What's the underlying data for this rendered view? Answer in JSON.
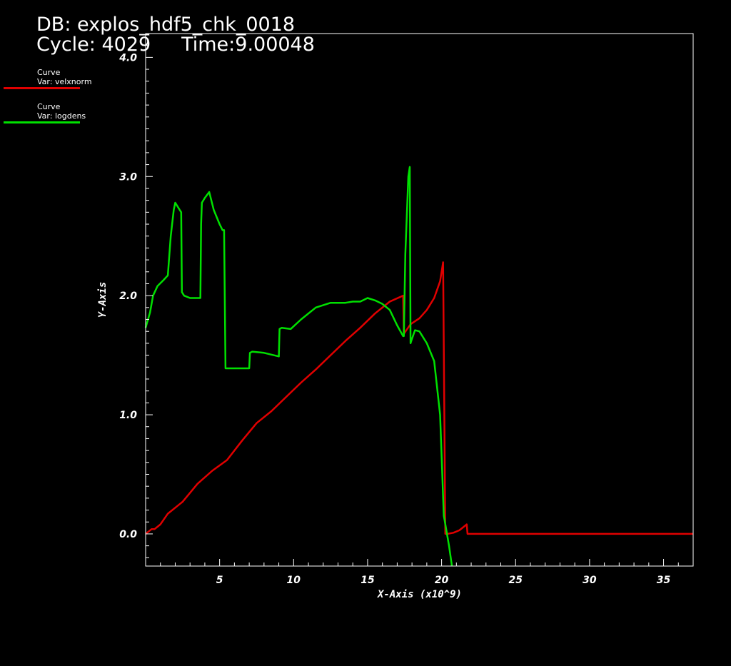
{
  "header": {
    "db_line": "DB: explos_hdf5_chk_0018",
    "cycle_line": "Cycle: 4029     Time:9.00048"
  },
  "legend": [
    {
      "kind": "Curve",
      "var": "Var: velxnorm",
      "color": "#e00000"
    },
    {
      "kind": "Curve",
      "var": "Var: logdens",
      "color": "#00e000"
    }
  ],
  "chart_data": {
    "type": "line",
    "xlabel": "X-Axis (x10^9)",
    "ylabel": "Y-Axis",
    "xlim": [
      0,
      37
    ],
    "ylim": [
      -0.27,
      4.2
    ],
    "xticks": [
      5,
      10,
      15,
      20,
      25,
      30,
      35
    ],
    "yticks": [
      0.0,
      1.0,
      2.0,
      3.0,
      4.0
    ],
    "ytick_labels": [
      "0.0",
      "1.0",
      "2.0",
      "3.0",
      "4.0"
    ],
    "grid": false,
    "series": [
      {
        "name": "velxnorm",
        "color": "#e00000",
        "x": [
          0,
          0.4,
          0.6,
          1.0,
          1.5,
          2.5,
          3.5,
          4.5,
          5.5,
          6.5,
          7.5,
          8.5,
          9.5,
          10.5,
          11.5,
          12.5,
          13.5,
          14.5,
          15.5,
          16.5,
          17.4,
          17.45,
          17.9,
          18.5,
          19.0,
          19.5,
          19.9,
          20.1,
          20.25,
          20.4,
          20.8,
          21.2,
          21.7,
          21.75,
          21.8,
          37
        ],
        "y": [
          0,
          0.04,
          0.04,
          0.08,
          0.17,
          0.27,
          0.42,
          0.53,
          0.62,
          0.78,
          0.93,
          1.03,
          1.15,
          1.27,
          1.38,
          1.5,
          1.62,
          1.73,
          1.85,
          1.95,
          2.0,
          1.68,
          1.76,
          1.81,
          1.88,
          1.98,
          2.12,
          2.28,
          0.0,
          0.0,
          0.01,
          0.03,
          0.08,
          0.0,
          0.0,
          0.0
        ]
      },
      {
        "name": "logdens",
        "color": "#00e000",
        "x": [
          0,
          0.3,
          0.5,
          0.8,
          1.2,
          1.5,
          1.7,
          1.9,
          2.0,
          2.3,
          2.4,
          2.45,
          2.6,
          3.0,
          3.7,
          3.75,
          3.8,
          4.0,
          4.3,
          4.6,
          5.0,
          5.2,
          5.3,
          5.4,
          6.0,
          7.0,
          7.05,
          7.2,
          8.0,
          9.0,
          9.05,
          9.2,
          9.8,
          10.5,
          11.5,
          12.5,
          13.5,
          14.0,
          14.5,
          15.0,
          15.5,
          16.0,
          16.5,
          17.0,
          17.4,
          17.45,
          17.55,
          17.75,
          17.85,
          17.9,
          17.95,
          18.2,
          18.5,
          19.0,
          19.5,
          19.9,
          20.15,
          20.2,
          20.5,
          20.7
        ],
        "y": [
          1.73,
          1.86,
          2.0,
          2.08,
          2.13,
          2.17,
          2.5,
          2.72,
          2.78,
          2.72,
          2.7,
          2.03,
          2.0,
          1.98,
          1.98,
          2.6,
          2.78,
          2.82,
          2.87,
          2.72,
          2.6,
          2.55,
          2.55,
          1.39,
          1.39,
          1.39,
          1.52,
          1.53,
          1.52,
          1.49,
          1.72,
          1.73,
          1.72,
          1.8,
          1.9,
          1.94,
          1.94,
          1.95,
          1.95,
          1.98,
          1.96,
          1.93,
          1.88,
          1.75,
          1.66,
          1.66,
          2.35,
          3.0,
          3.08,
          1.6,
          1.62,
          1.71,
          1.7,
          1.6,
          1.45,
          1.0,
          0.15,
          0.12,
          -0.1,
          -0.27
        ]
      }
    ]
  }
}
